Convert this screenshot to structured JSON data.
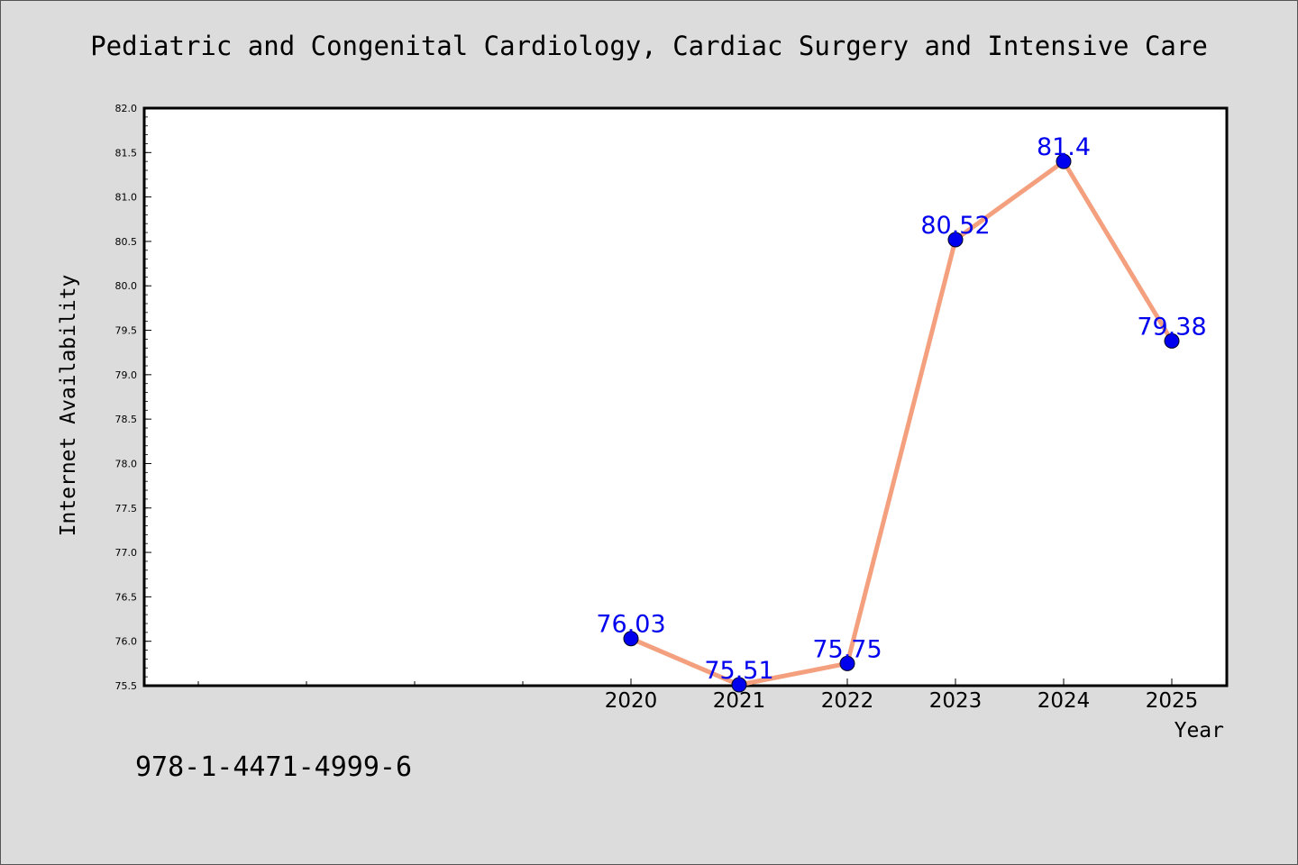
{
  "chart_data": {
    "type": "line",
    "title": "Pediatric and Congenital Cardiology, Cardiac Surgery and Intensive Care",
    "xlabel": "Year",
    "ylabel": "Internet Availability",
    "categories": [
      "2020",
      "2021",
      "2022",
      "2023",
      "2024",
      "2025"
    ],
    "series": [
      {
        "values": [
          76.03,
          75.51,
          75.75,
          80.52,
          81.4,
          79.38
        ]
      }
    ],
    "data_labels": [
      "76.03",
      "75.51",
      "75.75",
      "80.52",
      "81.4",
      "79.38"
    ],
    "ylim": [
      75.5,
      82.0
    ],
    "yticks": [
      "75.5",
      "76.0",
      "76.5",
      "77.0",
      "77.5",
      "78.0",
      "78.5",
      "79.0",
      "79.5",
      "80.0",
      "80.5",
      "81.0",
      "81.5",
      "82.0"
    ],
    "grid": false,
    "line_color": "#f4a07e",
    "marker_color": "#0000ee",
    "label_color": "#0000ee"
  },
  "footnote": "978-1-4471-4999-6"
}
